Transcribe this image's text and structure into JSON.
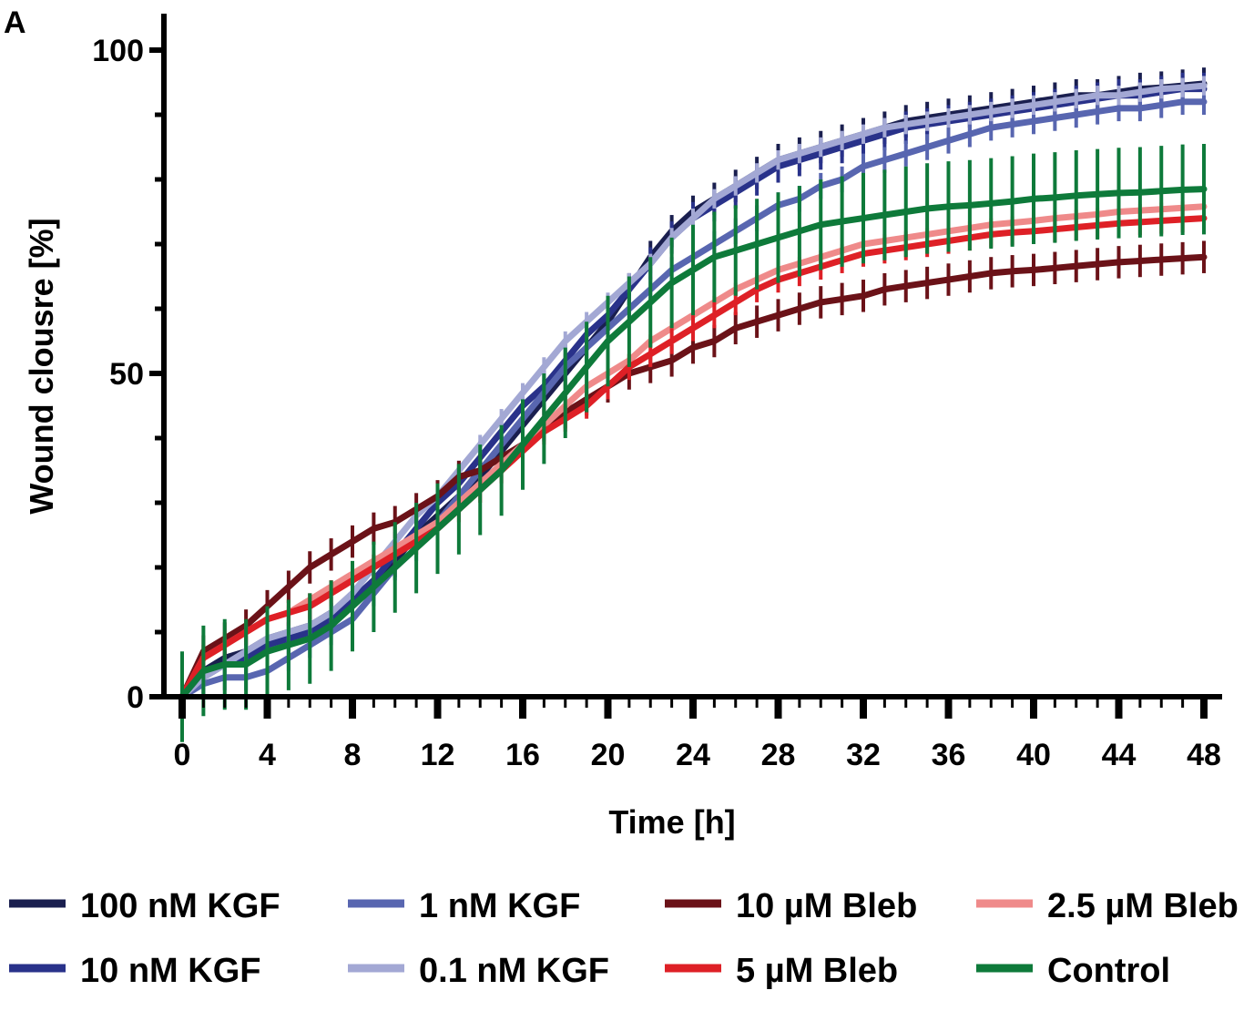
{
  "panel_label": "A",
  "chart_data": {
    "type": "line",
    "title": "",
    "xlabel": "Time [h]",
    "ylabel": "Wound clousre [%]",
    "xlim": [
      0,
      48
    ],
    "ylim": [
      0,
      100
    ],
    "x_ticks": [
      "0",
      "4",
      "8",
      "12",
      "16",
      "20",
      "24",
      "28",
      "32",
      "36",
      "40",
      "44",
      "48"
    ],
    "y_ticks": [
      "0",
      "50",
      "100"
    ],
    "grid": false,
    "legend_position": "bottom",
    "x": [
      0,
      1,
      2,
      3,
      4,
      5,
      6,
      7,
      8,
      9,
      10,
      11,
      12,
      13,
      14,
      15,
      16,
      17,
      18,
      19,
      20,
      21,
      22,
      23,
      24,
      25,
      26,
      27,
      28,
      29,
      30,
      31,
      32,
      33,
      34,
      35,
      36,
      37,
      38,
      39,
      40,
      41,
      42,
      43,
      44,
      45,
      46,
      47,
      48
    ],
    "series": [
      {
        "name": "100 nM KGF",
        "color": "#1a1f4f",
        "err": 2.5,
        "values": [
          0,
          4,
          6,
          7,
          9,
          10,
          11,
          13,
          15,
          18,
          21,
          25,
          28,
          31,
          34,
          38,
          42,
          46,
          50,
          54,
          58,
          63,
          68,
          72,
          75,
          77,
          79,
          81,
          83,
          84,
          85,
          86,
          87,
          88,
          89,
          89.5,
          90,
          90.5,
          91,
          91.5,
          92,
          92.5,
          93,
          93,
          93.5,
          94,
          94.2,
          94.5,
          94.8
        ]
      },
      {
        "name": "10 nM KGF",
        "color": "#29328a",
        "err": 2.5,
        "values": [
          0,
          3,
          5,
          6,
          8,
          9,
          10,
          12,
          15,
          18,
          22,
          26,
          30,
          33,
          37,
          41,
          45,
          48,
          52,
          56,
          59,
          63,
          67,
          71,
          74,
          76,
          78,
          80,
          82,
          83,
          84,
          85,
          86,
          87,
          88,
          88.5,
          89,
          89.5,
          90,
          90.5,
          91,
          91.5,
          92,
          92.5,
          93,
          93,
          93.5,
          94,
          94
        ]
      },
      {
        "name": "1 nM KGF",
        "color": "#5866b0",
        "err": 2.0,
        "values": [
          0,
          2,
          3,
          3,
          4,
          6,
          8,
          10,
          12,
          16,
          20,
          23,
          27,
          31,
          35,
          39,
          43,
          47,
          51,
          54,
          57,
          60,
          63,
          66,
          68,
          70,
          72,
          74,
          76,
          77,
          79,
          80,
          82,
          83,
          84,
          85,
          86,
          87,
          88,
          88.5,
          89,
          89.5,
          90,
          90.5,
          91,
          91,
          91.5,
          92,
          92
        ]
      },
      {
        "name": "0.1 nM KGF",
        "color": "#a3a8d4",
        "err": 1.5,
        "values": [
          0,
          3,
          5,
          7,
          9,
          10,
          11,
          13,
          16,
          20,
          24,
          28,
          31,
          35,
          39,
          43,
          47,
          51,
          55,
          58,
          61,
          64,
          67,
          71,
          74,
          77,
          79,
          81,
          83,
          84,
          85,
          86,
          87,
          88,
          88.5,
          89,
          89.5,
          90,
          90.5,
          91,
          91.5,
          92,
          92.5,
          93,
          93,
          93.5,
          94,
          94.2,
          94.5
        ]
      },
      {
        "name": "10 µM Bleb",
        "color": "#6b1218",
        "err": 2.5,
        "values": [
          0,
          7,
          9,
          11,
          14,
          17,
          20,
          22,
          24,
          26,
          27,
          29,
          31,
          34,
          35,
          37,
          39,
          42,
          44,
          46,
          48,
          50,
          51,
          52,
          54,
          55,
          57,
          58,
          59,
          60,
          61,
          61.5,
          62,
          63,
          63.5,
          64,
          64.5,
          65,
          65.5,
          65.8,
          66,
          66.3,
          66.6,
          66.9,
          67.2,
          67.4,
          67.6,
          67.8,
          68
        ]
      },
      {
        "name": "2.5 µM Bleb",
        "color": "#ef8a8a",
        "err": 1.0,
        "values": [
          0,
          6,
          8,
          10,
          12,
          13,
          15,
          17,
          19,
          21,
          23,
          25,
          27,
          30,
          33,
          36,
          39,
          42,
          45,
          48,
          50,
          52,
          55,
          57,
          59,
          61,
          63,
          64.5,
          66,
          67,
          68,
          69,
          70,
          70.5,
          71,
          71.5,
          72,
          72.5,
          73,
          73.3,
          73.6,
          74,
          74.3,
          74.6,
          75,
          75.2,
          75.4,
          75.6,
          75.8
        ]
      },
      {
        "name": "5 µM Bleb",
        "color": "#de2026",
        "err": 2.0,
        "values": [
          0,
          6,
          8,
          10,
          12,
          13,
          14,
          16,
          18,
          20,
          22,
          24,
          26,
          29,
          32,
          35,
          38,
          41,
          43,
          45,
          48,
          51,
          53,
          55,
          57,
          59,
          61,
          63,
          64.5,
          65.5,
          66.5,
          67.5,
          68.5,
          69,
          69.5,
          70,
          70.5,
          71,
          71.5,
          71.8,
          72,
          72.3,
          72.6,
          72.9,
          73.2,
          73.4,
          73.6,
          73.8,
          74
        ]
      },
      {
        "name": "Control",
        "color": "#0e7a3a",
        "err": 7.0,
        "values": [
          0,
          4,
          5,
          5,
          7,
          8,
          9,
          11,
          14,
          17,
          20,
          23,
          26,
          29,
          32,
          35,
          39,
          43,
          47,
          51,
          55,
          58,
          61,
          64,
          66,
          68,
          69,
          70,
          71,
          72,
          73,
          73.5,
          74,
          74.5,
          75,
          75.5,
          75.8,
          76,
          76.3,
          76.6,
          77,
          77.2,
          77.5,
          77.7,
          77.9,
          78,
          78.2,
          78.4,
          78.5
        ]
      }
    ]
  },
  "legend": [
    {
      "label": "100 nM KGF",
      "color": "#1a1f4f"
    },
    {
      "label": "1 nM KGF",
      "color": "#5866b0"
    },
    {
      "label": "10 µM Bleb",
      "color": "#6b1218"
    },
    {
      "label": "2.5 µM Bleb",
      "color": "#ef8a8a"
    },
    {
      "label": "10 nM KGF",
      "color": "#29328a"
    },
    {
      "label": "0.1 nM KGF",
      "color": "#a3a8d4"
    },
    {
      "label": "5 µM Bleb",
      "color": "#de2026"
    },
    {
      "label": "Control",
      "color": "#0e7a3a"
    }
  ]
}
